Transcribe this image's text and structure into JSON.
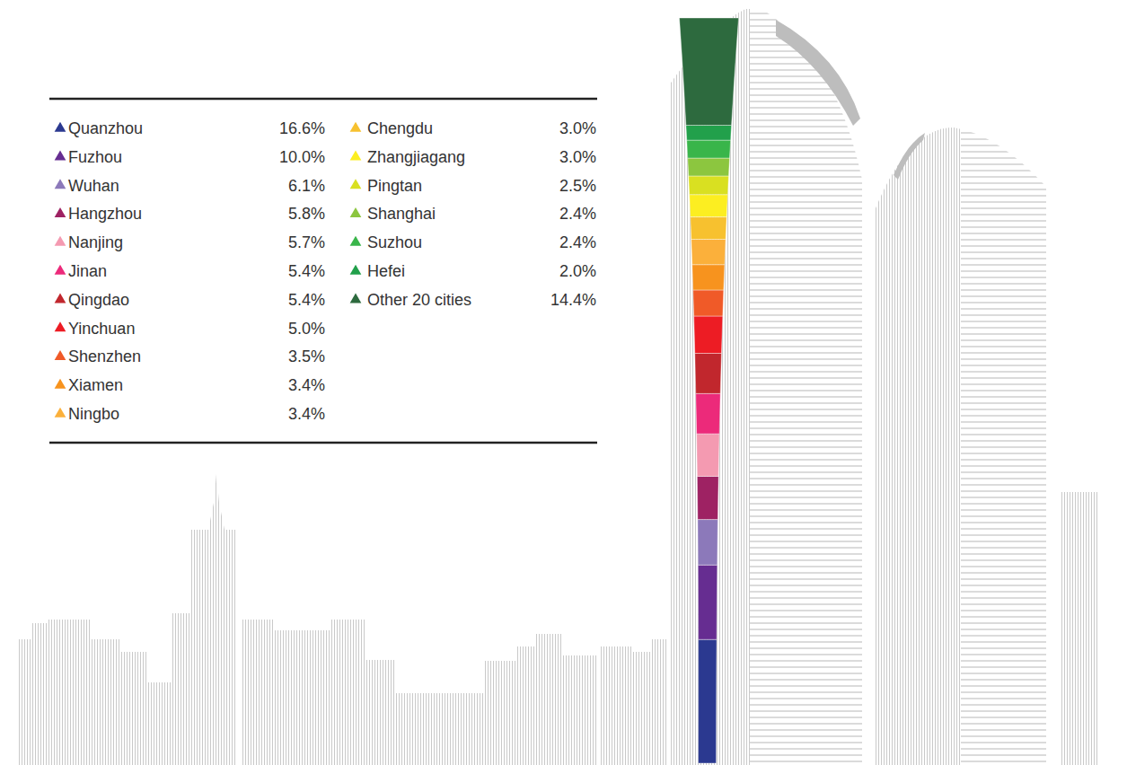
{
  "chart_data": {
    "type": "bar",
    "stacked": true,
    "tick_labels": false,
    "legend": "upper left",
    "categories": [
      null
    ],
    "ylim": [
      0,
      100
    ],
    "series": [
      {
        "name": "Quanzhou",
        "color": "#2B3990",
        "values": [
          16.6
        ],
        "value_labels": [
          "16.6%"
        ]
      },
      {
        "name": "Fuzhou",
        "color": "#662D91",
        "values": [
          10.0
        ],
        "value_labels": [
          "10.0%"
        ]
      },
      {
        "name": "Wuhan",
        "color": "#8C79BA",
        "values": [
          6.1
        ],
        "value_labels": [
          "6.1%"
        ]
      },
      {
        "name": "Hangzhou",
        "color": "#9E2263",
        "values": [
          5.8
        ],
        "value_labels": [
          "5.8%"
        ]
      },
      {
        "name": "Nanjing",
        "color": "#F49AB1",
        "values": [
          5.7
        ],
        "value_labels": [
          "5.7%"
        ]
      },
      {
        "name": "Jinan",
        "color": "#EC2A7A",
        "values": [
          5.4
        ],
        "value_labels": [
          "5.4%"
        ]
      },
      {
        "name": "Qingdao",
        "color": "#C1272D",
        "values": [
          5.4
        ],
        "value_labels": [
          "5.4%"
        ]
      },
      {
        "name": "Yinchuan",
        "color": "#ED1C24",
        "values": [
          5.0
        ],
        "value_labels": [
          "5.0%"
        ]
      },
      {
        "name": "Shenzhen",
        "color": "#F05A28",
        "values": [
          3.5
        ],
        "value_labels": [
          "3.5%"
        ]
      },
      {
        "name": "Xiamen",
        "color": "#F7931E",
        "values": [
          3.4
        ],
        "value_labels": [
          "3.4%"
        ]
      },
      {
        "name": "Ningbo",
        "color": "#FBB03B",
        "values": [
          3.4
        ],
        "value_labels": [
          "3.4%"
        ]
      },
      {
        "name": "Chengdu",
        "color": "#F7C12F",
        "values": [
          3.0
        ],
        "value_labels": [
          "3.0%"
        ]
      },
      {
        "name": "Zhangjiagang",
        "color": "#FCEE21",
        "values": [
          3.0
        ],
        "value_labels": [
          "3.0%"
        ]
      },
      {
        "name": "Pingtan",
        "color": "#D9E021",
        "values": [
          2.5
        ],
        "value_labels": [
          "2.5%"
        ]
      },
      {
        "name": "Shanghai",
        "color": "#8CC63F",
        "values": [
          2.4
        ],
        "value_labels": [
          "2.4%"
        ]
      },
      {
        "name": "Suzhou",
        "color": "#39B54A",
        "values": [
          2.4
        ],
        "value_labels": [
          "2.4%"
        ]
      },
      {
        "name": "Hefei",
        "color": "#22A04B",
        "values": [
          2.0
        ],
        "value_labels": [
          "2.0%"
        ]
      },
      {
        "name": "Other 20 cities",
        "color": "#2D6A3E",
        "values": [
          14.4
        ],
        "value_labels": [
          "14.4%"
        ]
      }
    ]
  }
}
